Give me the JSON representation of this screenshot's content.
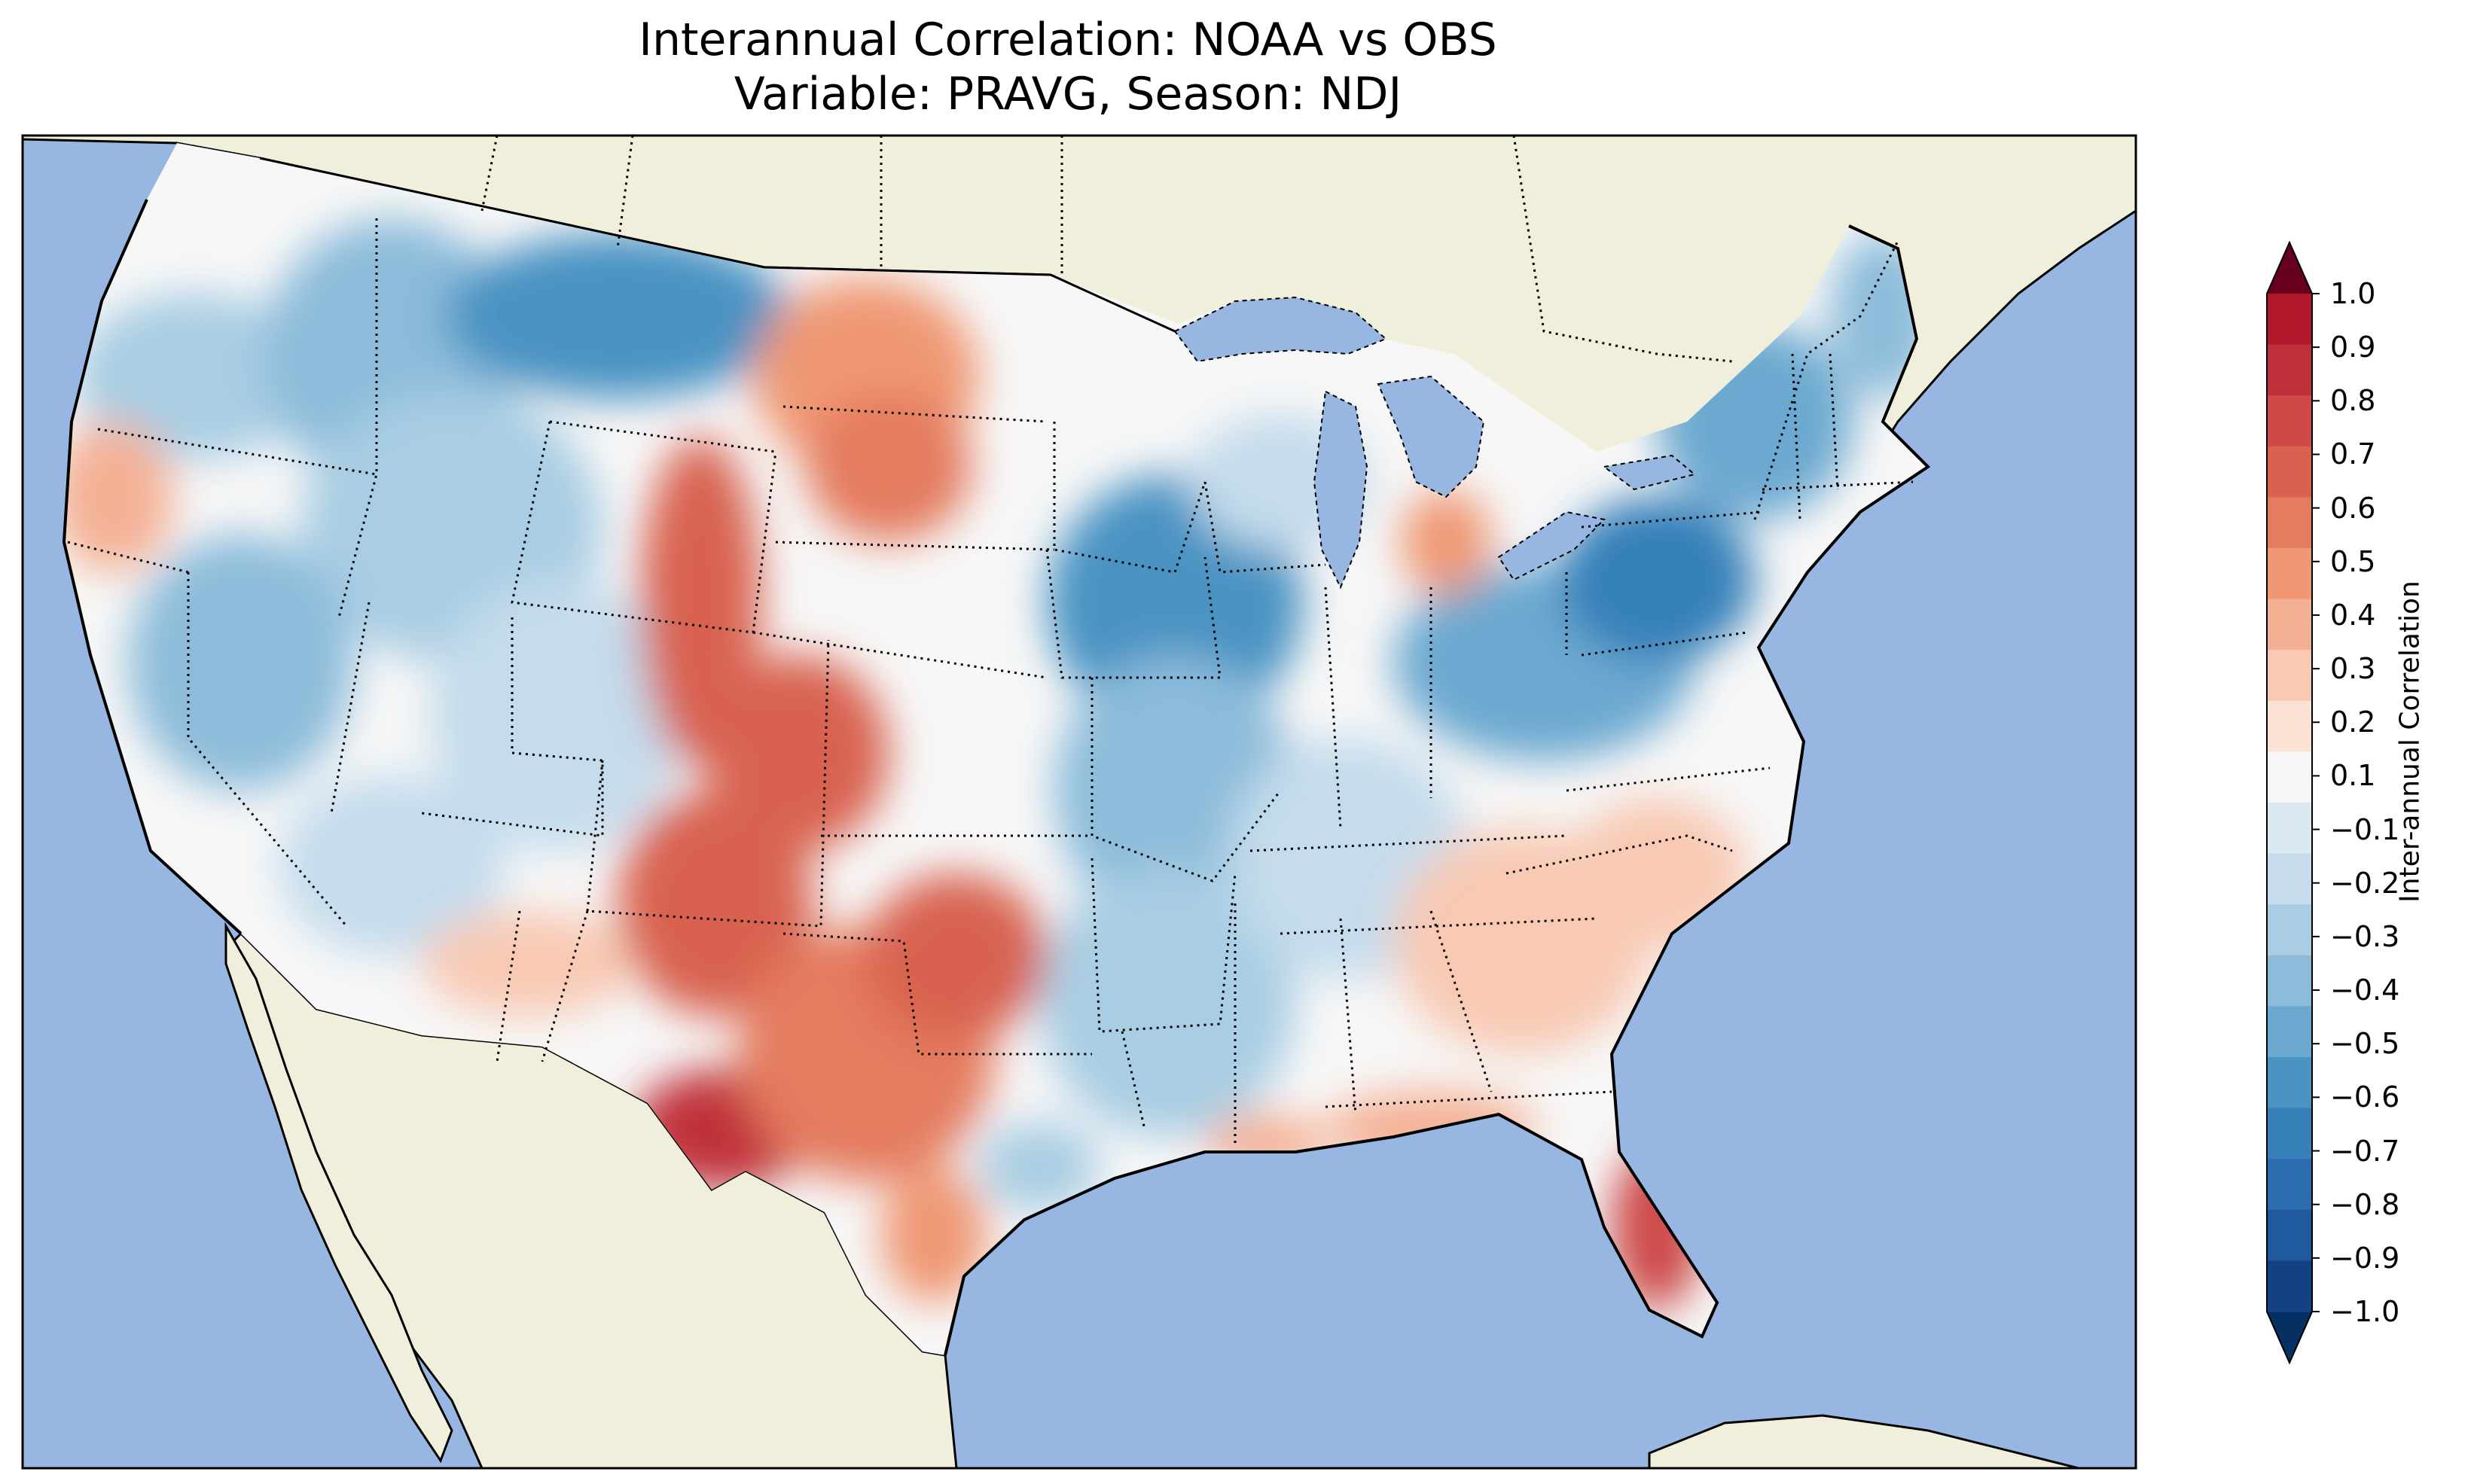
{
  "title": {
    "line1": "Interannual Correlation: NOAA vs OBS",
    "line2": "Variable: PRAVG, Season: NDJ"
  },
  "colorbar": {
    "label": "Inter-annual Correlation",
    "ticks": [
      "1.0",
      "0.9",
      "0.8",
      "0.7",
      "0.6",
      "0.5",
      "0.4",
      "0.3",
      "0.2",
      "0.1",
      "−0.1",
      "−0.2",
      "−0.3",
      "−0.4",
      "−0.5",
      "−0.6",
      "−0.7",
      "−0.8",
      "−0.9",
      "−1.0"
    ],
    "colors": [
      "#b2182b",
      "#c0303a",
      "#cd4a49",
      "#d8624f",
      "#e47c5f",
      "#ef9873",
      "#f4b094",
      "#f8c9b3",
      "#fbe2d4",
      "#f7f7f7",
      "#dbe9f2",
      "#c4dcec",
      "#a9cde3",
      "#8cbcda",
      "#6ca9d0",
      "#4a93c3",
      "#3680b9",
      "#2b6db0",
      "#1f5a9f",
      "#134184"
    ],
    "extend_max_color": "#67001f",
    "extend_min_color": "#053061"
  },
  "map": {
    "ocean_color": "#97b6e1",
    "land_color": "#efefdb",
    "region": "Contiguous United States"
  },
  "chart_data": {
    "type": "heatmap",
    "title": "Interannual Correlation: NOAA vs OBS — Variable: PRAVG, Season: NDJ",
    "colorbar_label": "Inter-annual Correlation",
    "vmin": -1.0,
    "vmax": 1.0,
    "levels": [
      -1.0,
      -0.9,
      -0.8,
      -0.7,
      -0.6,
      -0.5,
      -0.4,
      -0.3,
      -0.2,
      -0.1,
      0.1,
      0.2,
      0.3,
      0.4,
      0.5,
      0.6,
      0.7,
      0.8,
      0.9,
      1.0
    ],
    "colormap": "RdBu_r",
    "regional_values": [
      {
        "region": "Pacific Northwest",
        "value": -0.3
      },
      {
        "region": "Northern Rockies (MT/ID)",
        "value": -0.5
      },
      {
        "region": "Great Basin (NV)",
        "value": -0.3
      },
      {
        "region": "California coast",
        "value": 0.2
      },
      {
        "region": "Colorado / Wyoming Front Range",
        "value": 0.6
      },
      {
        "region": "New Mexico",
        "value": 0.5
      },
      {
        "region": "Southwest Texas",
        "value": 0.8
      },
      {
        "region": "Texas",
        "value": 0.5
      },
      {
        "region": "Oklahoma",
        "value": 0.6
      },
      {
        "region": "Dakotas",
        "value": 0.4
      },
      {
        "region": "Iowa / Missouri",
        "value": -0.5
      },
      {
        "region": "Ohio Valley",
        "value": -0.5
      },
      {
        "region": "Pennsylvania",
        "value": -0.7
      },
      {
        "region": "New England",
        "value": -0.4
      },
      {
        "region": "Lower Mississippi Valley",
        "value": -0.2
      },
      {
        "region": "Southeast (GA/Carolinas)",
        "value": 0.3
      },
      {
        "region": "Florida peninsula",
        "value": 0.7
      }
    ]
  }
}
